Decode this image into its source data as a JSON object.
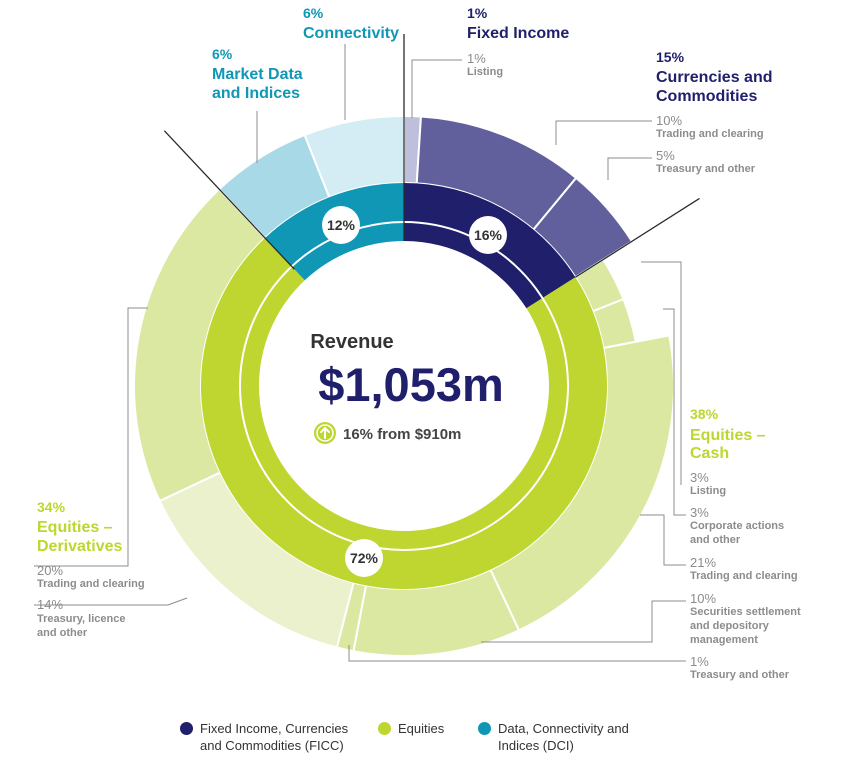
{
  "chart_data": {
    "type": "pie",
    "center": {
      "title": "Revenue",
      "value": "$1,053m",
      "change": "16% from $910m",
      "change_icon": "arrow-up-circle-icon"
    },
    "colors": {
      "ficc": "#1f1f6b",
      "equities": "#bed62f",
      "dci": "#0f97b5",
      "ficc_outer": "#615f9c",
      "ficc_outer_light": "#bebedd",
      "equities_outer": "#dbe8a1",
      "equities_outer_light": "#eaf1cc",
      "dci_outer": "#a7d9e6",
      "dci_outer_light": "#d4ecf3"
    },
    "inner_ring": [
      {
        "name": "Fixed Income, Currencies and Commodities (FICC)",
        "value": 16,
        "label": "16%"
      },
      {
        "name": "Equities",
        "value": 72,
        "label": "72%"
      },
      {
        "name": "Data, Connectivity and Indices (DCI)",
        "value": 12,
        "label": "12%"
      }
    ],
    "outer_ring": [
      {
        "group": "ficc",
        "value": 1,
        "pct": "1%",
        "name": "Listing"
      },
      {
        "group": "ficc",
        "value": 10,
        "pct": "10%",
        "name": "Trading and clearing"
      },
      {
        "group": "ficc",
        "value": 5,
        "pct": "5%",
        "name": "Treasury and other"
      },
      {
        "group": "equities",
        "value": 3,
        "pct": "3%",
        "name": "Listing"
      },
      {
        "group": "equities",
        "value": 3,
        "pct": "3%",
        "name": "Corporate actions and other"
      },
      {
        "group": "equities",
        "value": 21,
        "pct": "21%",
        "name": "Trading and clearing"
      },
      {
        "group": "equities",
        "value": 10,
        "pct": "10%",
        "name": "Securities settlement and depository management"
      },
      {
        "group": "equities",
        "value": 1,
        "pct": "1%",
        "name": "Treasury and other"
      },
      {
        "group": "equities",
        "value": 14,
        "pct": "14%",
        "name": "Treasury, licence and other"
      },
      {
        "group": "equities",
        "value": 20,
        "pct": "20%",
        "name": "Trading and clearing"
      },
      {
        "group": "dci",
        "value": 6,
        "pct": "6%",
        "name": "Market Data and Indices"
      },
      {
        "group": "dci",
        "value": 6,
        "pct": "6%",
        "name": "Connectivity"
      }
    ],
    "categories": [
      {
        "pct": "1%",
        "name": "Fixed Income"
      },
      {
        "pct": "15%",
        "name": "Currencies and Commodities"
      },
      {
        "pct": "38%",
        "name": "Equities – Cash"
      },
      {
        "pct": "34%",
        "name": "Equities – Derivatives"
      },
      {
        "pct": "6%",
        "name": "Market Data and Indices"
      },
      {
        "pct": "6%",
        "name": "Connectivity"
      }
    ],
    "legend": [
      {
        "label": "Fixed Income, Currencies and Commodities (FICC)",
        "color": "#1f1f6b"
      },
      {
        "label": "Equities",
        "color": "#bed62f"
      },
      {
        "label": "Data, Connectivity and Indices (DCI)",
        "color": "#0f97b5"
      }
    ]
  }
}
